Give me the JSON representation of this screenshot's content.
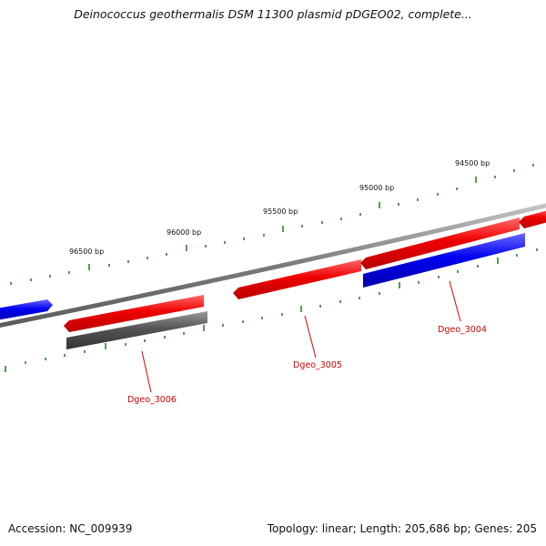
{
  "title": "Deinococcus geothermalis DSM 11300 plasmid pDGEO02, complete...",
  "footer": {
    "accession": "Accession: NC_009939",
    "summary": "Topology: linear; Length: 205,686 bp; Genes: 205"
  },
  "colors": {
    "forward_gene": "#ee0000",
    "reverse_gene": "#0000ee",
    "other_gene": "#555555",
    "backbone": "#8a8a8a",
    "tick": "#1a7a1a",
    "label": "#cc0000"
  },
  "scale": {
    "ticks": [
      {
        "label": "96500 bp"
      },
      {
        "label": "96000 bp"
      },
      {
        "label": "95500 bp"
      },
      {
        "label": "95000 bp"
      },
      {
        "label": "94500 bp"
      }
    ]
  },
  "genes": [
    {
      "label": "Dgeo_3006"
    },
    {
      "label": "Dgeo_3005"
    },
    {
      "label": "Dgeo_3004"
    }
  ]
}
